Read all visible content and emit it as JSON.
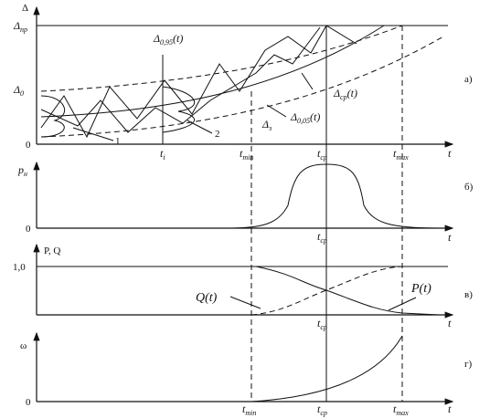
{
  "panel_a": {
    "label": "а)",
    "y_axis": "Δ",
    "x_axis": "t",
    "origin": "0",
    "limit": {
      "symbol": "Δ",
      "sub": "пр"
    },
    "initial": {
      "symbol": "Δ",
      "sub": "0"
    },
    "curve_upper": {
      "symbol": "Δ",
      "sub": "0,95",
      "arg": "(t)"
    },
    "curve_mean": {
      "symbol": "Δ",
      "sub": "ср",
      "arg": "(t)"
    },
    "curve_lower": {
      "symbol": "Δ",
      "sub": "0,05",
      "arg": "(t)"
    },
    "threshold": {
      "symbol": "Δ",
      "sub": "з"
    },
    "marker_1": "1",
    "marker_2": "2",
    "t_i": {
      "symbol": "t",
      "sub": "i"
    },
    "t_min": {
      "symbol": "t",
      "sub": "min"
    },
    "t_cp": {
      "symbol": "t",
      "sub": "ср"
    },
    "t_max": {
      "symbol": "t",
      "sub": "max"
    }
  },
  "panel_b": {
    "label": "б)",
    "y_axis": {
      "symbol": "р",
      "sub": "н"
    },
    "x_axis": "t",
    "origin": "0",
    "t_cp": {
      "symbol": "t",
      "sub": "ср"
    }
  },
  "panel_v": {
    "label": "в)",
    "y_axis": "P, Q",
    "x_axis": "t",
    "tick": "1,0",
    "q_curve": "Q(t)",
    "p_curve": "P(t)",
    "t_cp": {
      "symbol": "t",
      "sub": "ср"
    }
  },
  "panel_g": {
    "label": "г)",
    "y_axis": "ω",
    "x_axis": "t",
    "origin": "0",
    "t_min": {
      "symbol": "t",
      "sub": "min"
    },
    "t_cp": {
      "symbol": "t",
      "sub": "ср"
    },
    "t_max": {
      "symbol": "t",
      "sub": "max"
    }
  }
}
